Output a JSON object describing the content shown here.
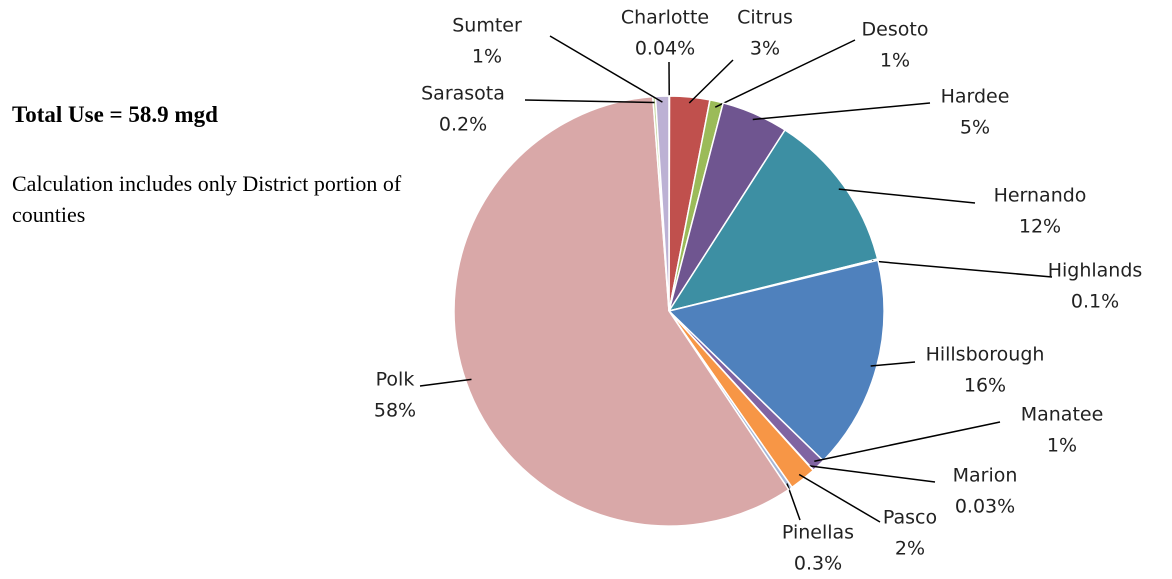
{
  "chart_data": {
    "type": "pie",
    "title": "Total Use = 58.9 mgd",
    "subtitle": "Calculation includes only District portion of counties",
    "categories": [
      "Charlotte",
      "Citrus",
      "Desoto",
      "Hardee",
      "Hernando",
      "Highlands",
      "Hillsborough",
      "Manatee",
      "Marion",
      "Pasco",
      "Pinellas",
      "Polk",
      "Sarasota",
      "Sumter"
    ],
    "values": [
      0.04,
      3,
      1,
      5,
      12,
      0.1,
      16,
      1,
      0.03,
      2,
      0.3,
      58,
      0.2,
      1
    ],
    "value_labels": [
      "0.04%",
      "3%",
      "1%",
      "5%",
      "12%",
      "0.1%",
      "16%",
      "1%",
      "0.03%",
      "2%",
      "0.3%",
      "58%",
      "0.2%",
      "1%"
    ],
    "colors": [
      "#4f81bd",
      "#c0504d",
      "#9bbb59",
      "#6f5590",
      "#3d8fa3",
      "#f79646",
      "#4f81bd",
      "#8064a2",
      "#4bacc6",
      "#f79646",
      "#a5b6d6",
      "#d9a8a8",
      "#c3d69b",
      "#bcb1d4"
    ]
  }
}
